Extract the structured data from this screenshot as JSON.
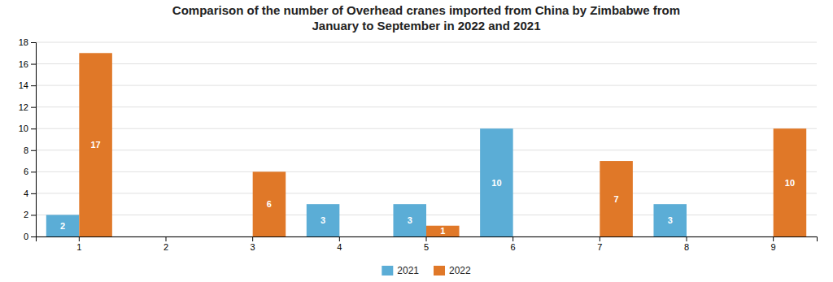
{
  "chart_data": {
    "type": "bar",
    "title": "Comparison of the number of Overhead cranes imported from China by Zimbabwe from\nJanuary to September in 2022 and 2021",
    "categories": [
      "1",
      "2",
      "3",
      "4",
      "5",
      "6",
      "7",
      "8",
      "9"
    ],
    "series": [
      {
        "name": "2021",
        "color": "#5badd6",
        "values": [
          2,
          0,
          0,
          3,
          3,
          10,
          0,
          3,
          0
        ],
        "value_labels": [
          "2",
          null,
          null,
          "3",
          "3",
          "10",
          null,
          "3",
          null
        ]
      },
      {
        "name": "2022",
        "color": "#e07828",
        "values": [
          17,
          0,
          6,
          0,
          1,
          0,
          7,
          0,
          10
        ],
        "value_labels": [
          "17",
          null,
          "6",
          null,
          "1",
          null,
          "7",
          null,
          "10"
        ]
      }
    ],
    "ylim": [
      0,
      18
    ],
    "yticks": [
      0,
      2,
      4,
      6,
      8,
      10,
      12,
      14,
      16,
      18
    ],
    "grid": true,
    "legend": "bottom",
    "data_labels": true
  }
}
